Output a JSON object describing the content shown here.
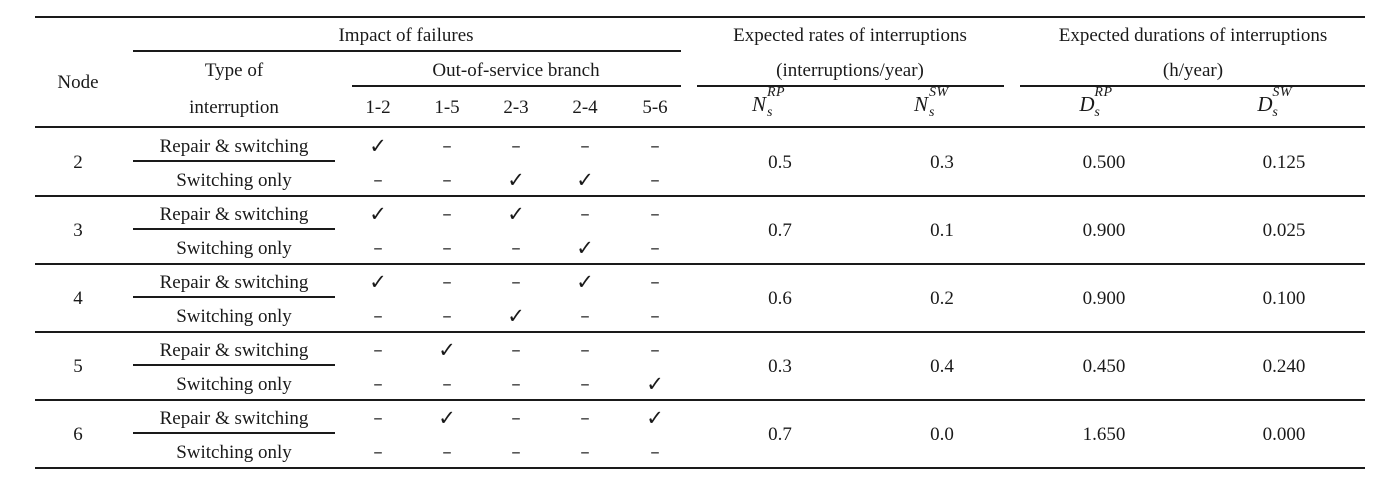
{
  "header": {
    "node": "Node",
    "impact": "Impact of failures",
    "type_line1": "Type of",
    "type_line2": "interruption",
    "oos": "Out-of-service branch",
    "branches": [
      "1-2",
      "1-5",
      "2-3",
      "2-4",
      "5-6"
    ],
    "rates_line1": "Expected rates of interruptions",
    "rates_line2": "(interruptions/year)",
    "durations_line1": "Expected durations of interruptions",
    "durations_line2": "(h/year)",
    "n_rp": {
      "base": "N",
      "sup": "RP",
      "sub": "s"
    },
    "n_sw": {
      "base": "N",
      "sup": "SW",
      "sub": "s"
    },
    "d_rp": {
      "base": "D",
      "sup": "RP",
      "sub": "s"
    },
    "d_sw": {
      "base": "D",
      "sup": "SW",
      "sub": "s"
    }
  },
  "symbols": {
    "check": "✓",
    "dash": "–"
  },
  "rows": [
    {
      "node": "2",
      "repair": [
        "check",
        "dash",
        "dash",
        "dash",
        "dash"
      ],
      "switching": [
        "dash",
        "dash",
        "check",
        "check",
        "dash"
      ],
      "n_rp": "0.5",
      "n_sw": "0.3",
      "d_rp": "0.500",
      "d_sw": "0.125"
    },
    {
      "node": "3",
      "repair": [
        "check",
        "dash",
        "check",
        "dash",
        "dash"
      ],
      "switching": [
        "dash",
        "dash",
        "dash",
        "check",
        "dash"
      ],
      "n_rp": "0.7",
      "n_sw": "0.1",
      "d_rp": "0.900",
      "d_sw": "0.025"
    },
    {
      "node": "4",
      "repair": [
        "check",
        "dash",
        "dash",
        "check",
        "dash"
      ],
      "switching": [
        "dash",
        "dash",
        "check",
        "dash",
        "dash"
      ],
      "n_rp": "0.6",
      "n_sw": "0.2",
      "d_rp": "0.900",
      "d_sw": "0.100"
    },
    {
      "node": "5",
      "repair": [
        "dash",
        "check",
        "dash",
        "dash",
        "dash"
      ],
      "switching": [
        "dash",
        "dash",
        "dash",
        "dash",
        "check"
      ],
      "n_rp": "0.3",
      "n_sw": "0.4",
      "d_rp": "0.450",
      "d_sw": "0.240"
    },
    {
      "node": "6",
      "repair": [
        "dash",
        "check",
        "dash",
        "dash",
        "check"
      ],
      "switching": [
        "dash",
        "dash",
        "dash",
        "dash",
        "dash"
      ],
      "n_rp": "0.7",
      "n_sw": "0.0",
      "d_rp": "1.650",
      "d_sw": "0.000"
    }
  ],
  "row_labels": {
    "repair": "Repair & switching",
    "switching": "Switching only"
  }
}
